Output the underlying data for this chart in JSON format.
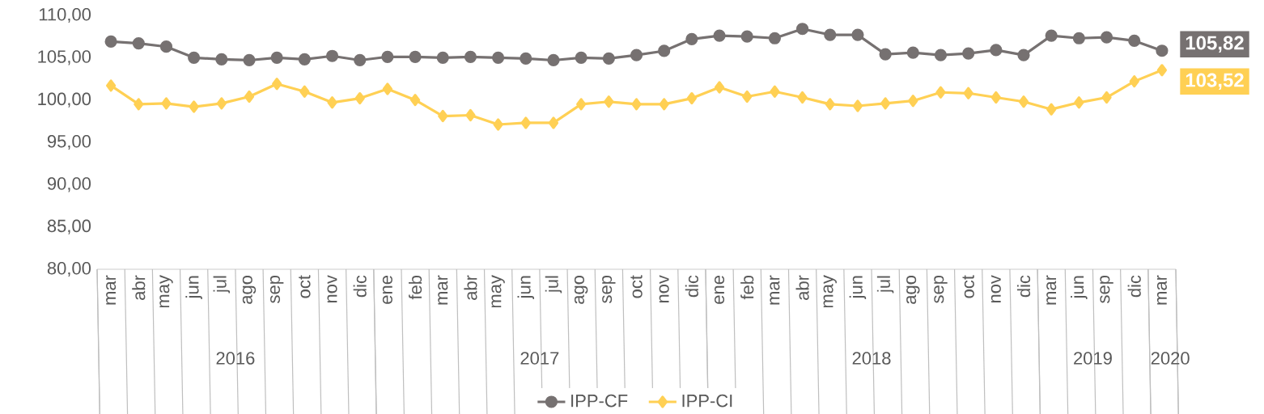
{
  "chart_data": {
    "type": "line",
    "categories": [
      "mar",
      "abr",
      "may",
      "jun",
      "jul",
      "ago",
      "sep",
      "oct",
      "nov",
      "dic",
      "ene",
      "feb",
      "mar",
      "abr",
      "may",
      "jun",
      "jul",
      "ago",
      "sep",
      "oct",
      "nov",
      "dic",
      "ene",
      "feb",
      "mar",
      "abr",
      "may",
      "jun",
      "jul",
      "ago",
      "sep",
      "oct",
      "nov",
      "dic",
      "mar",
      "jun",
      "sep",
      "dic",
      "mar"
    ],
    "series": [
      {
        "name": "IPP-CF",
        "color": "#767171",
        "marker": "circle",
        "values": [
          106.9,
          106.7,
          106.3,
          105.0,
          104.8,
          104.7,
          105.0,
          104.8,
          105.2,
          104.7,
          105.1,
          105.1,
          105.0,
          105.1,
          105.0,
          104.9,
          104.7,
          105.0,
          104.9,
          105.3,
          105.8,
          107.2,
          107.6,
          107.5,
          107.3,
          108.4,
          107.7,
          107.7,
          105.4,
          105.6,
          105.3,
          105.5,
          105.9,
          105.3,
          107.6,
          107.3,
          107.4,
          107.0,
          105.82
        ],
        "value_labels": [
          null,
          null,
          null,
          null,
          null,
          null,
          null,
          null,
          null,
          null,
          null,
          null,
          null,
          null,
          null,
          null,
          null,
          null,
          null,
          null,
          null,
          null,
          null,
          null,
          null,
          null,
          null,
          null,
          null,
          null,
          null,
          null,
          null,
          null,
          null,
          null,
          null,
          null,
          "105,82"
        ]
      },
      {
        "name": "IPP-CI",
        "color": "#ffd054",
        "marker": "diamond",
        "values": [
          101.7,
          99.5,
          99.6,
          99.2,
          99.6,
          100.4,
          101.9,
          101.0,
          99.7,
          100.2,
          101.3,
          100.0,
          98.1,
          98.2,
          97.1,
          97.3,
          97.3,
          99.5,
          99.8,
          99.5,
          99.5,
          100.2,
          101.5,
          100.4,
          101.0,
          100.3,
          99.5,
          99.3,
          99.6,
          99.9,
          100.9,
          100.8,
          100.3,
          99.8,
          98.9,
          99.7,
          100.3,
          102.2,
          103.52
        ],
        "value_labels": [
          null,
          null,
          null,
          null,
          null,
          null,
          null,
          null,
          null,
          null,
          null,
          null,
          null,
          null,
          null,
          null,
          null,
          null,
          null,
          null,
          null,
          null,
          null,
          null,
          null,
          null,
          null,
          null,
          null,
          null,
          null,
          null,
          null,
          null,
          null,
          null,
          null,
          null,
          "103,52"
        ]
      }
    ],
    "ylim": [
      80,
      110
    ],
    "yticks": [
      {
        "value": 80,
        "label": "80,00"
      },
      {
        "value": 85,
        "label": "85,00"
      },
      {
        "value": 90,
        "label": "90,00"
      },
      {
        "value": 95,
        "label": "95,00"
      },
      {
        "value": 100,
        "label": "100,00"
      },
      {
        "value": 105,
        "label": "105,00"
      },
      {
        "value": 110,
        "label": "110,00"
      }
    ],
    "annotations": [
      "2016",
      "2017",
      "2018",
      "2019",
      "2020"
    ],
    "legend": "bottom",
    "line_style": "solid"
  }
}
